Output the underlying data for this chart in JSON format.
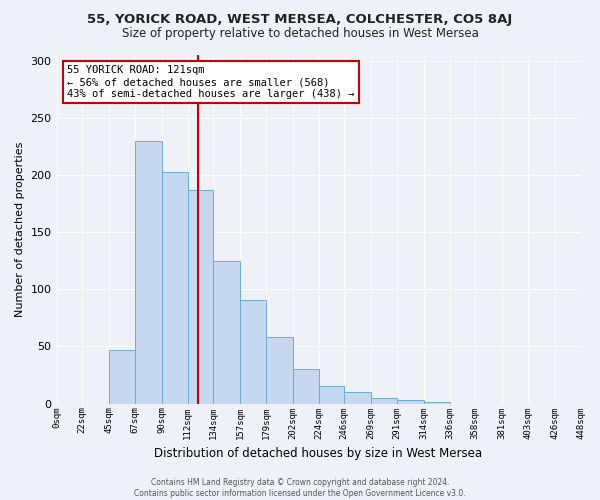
{
  "title": "55, YORICK ROAD, WEST MERSEA, COLCHESTER, CO5 8AJ",
  "subtitle": "Size of property relative to detached houses in West Mersea",
  "xlabel": "Distribution of detached houses by size in West Mersea",
  "ylabel": "Number of detached properties",
  "bar_color": "#c5d8f0",
  "bar_edge_color": "#6baed6",
  "background_color": "#eef2f8",
  "grid_color": "#ffffff",
  "bin_edges": [
    0,
    22,
    45,
    67,
    90,
    112,
    134,
    157,
    179,
    202,
    224,
    246,
    269,
    291,
    314,
    336,
    358,
    381,
    403,
    426,
    448
  ],
  "bin_labels": [
    "0sqm",
    "22sqm",
    "45sqm",
    "67sqm",
    "90sqm",
    "112sqm",
    "134sqm",
    "157sqm",
    "179sqm",
    "202sqm",
    "224sqm",
    "246sqm",
    "269sqm",
    "291sqm",
    "314sqm",
    "336sqm",
    "358sqm",
    "381sqm",
    "403sqm",
    "426sqm",
    "448sqm"
  ],
  "counts": [
    0,
    0,
    47,
    230,
    203,
    187,
    125,
    91,
    58,
    30,
    15,
    10,
    5,
    3,
    1,
    0,
    0,
    0,
    0,
    0
  ],
  "property_size": 121,
  "vline_color": "#cc0000",
  "annotation_line1": "55 YORICK ROAD: 121sqm",
  "annotation_line2": "← 56% of detached houses are smaller (568)",
  "annotation_line3": "43% of semi-detached houses are larger (438) →",
  "annotation_box_color": "#ffffff",
  "annotation_box_edge_color": "#cc0000",
  "footer_text": "Contains HM Land Registry data © Crown copyright and database right 2024.\nContains public sector information licensed under the Open Government Licence v3.0.",
  "ylim": [
    0,
    305
  ],
  "yticks": [
    0,
    50,
    100,
    150,
    200,
    250,
    300
  ]
}
